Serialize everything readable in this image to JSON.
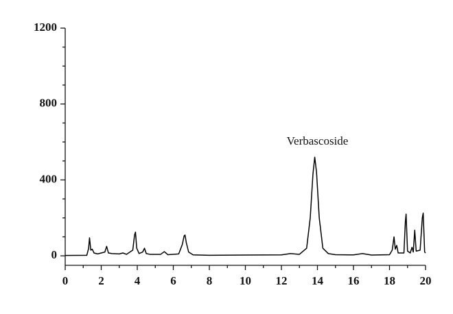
{
  "chart_data": {
    "type": "line",
    "annotation": {
      "text": "Verbascoside",
      "x": 14,
      "y": 600
    },
    "x": [
      0,
      1.2,
      1.3,
      1.35,
      1.42,
      1.5,
      1.6,
      1.8,
      2.2,
      2.3,
      2.4,
      2.6,
      3.0,
      3.2,
      3.4,
      3.75,
      3.85,
      3.9,
      3.97,
      4.1,
      4.3,
      4.4,
      4.5,
      4.7,
      5.3,
      5.5,
      5.7,
      6.3,
      6.5,
      6.6,
      6.65,
      6.72,
      6.85,
      7.1,
      8,
      10,
      12,
      12.5,
      13,
      13.4,
      13.6,
      13.75,
      13.85,
      13.95,
      14.1,
      14.3,
      14.6,
      15,
      16,
      16.5,
      17,
      18,
      18.15,
      18.25,
      18.32,
      18.4,
      18.48,
      18.8,
      18.88,
      18.92,
      19.0,
      19.15,
      19.25,
      19.32,
      19.4,
      19.48,
      19.7,
      19.82,
      19.87,
      19.95,
      20
    ],
    "series": [
      {
        "color": "#000000",
        "values": [
          2,
          3,
          40,
          95,
          30,
          35,
          15,
          10,
          20,
          50,
          15,
          12,
          10,
          15,
          8,
          30,
          110,
          125,
          40,
          12,
          20,
          40,
          12,
          8,
          8,
          22,
          6,
          10,
          60,
          105,
          110,
          70,
          20,
          5,
          3,
          4,
          5,
          12,
          8,
          40,
          200,
          430,
          520,
          440,
          200,
          40,
          12,
          6,
          5,
          12,
          4,
          6,
          30,
          100,
          35,
          55,
          15,
          15,
          180,
          220,
          25,
          15,
          45,
          20,
          135,
          25,
          30,
          200,
          225,
          20,
          15
        ]
      }
    ],
    "xlim": [
      0,
      20
    ],
    "xticks": [
      0,
      2,
      4,
      6,
      8,
      10,
      12,
      14,
      16,
      18,
      20
    ],
    "xminorticks": [
      1,
      3,
      5,
      7,
      9,
      11,
      13,
      15,
      17,
      19
    ],
    "ylim": [
      -50,
      1200
    ],
    "yticks": [
      0,
      400,
      800,
      1200
    ],
    "yminorticks": [
      100,
      200,
      300,
      500,
      600,
      700,
      900,
      1000,
      1100
    ]
  }
}
